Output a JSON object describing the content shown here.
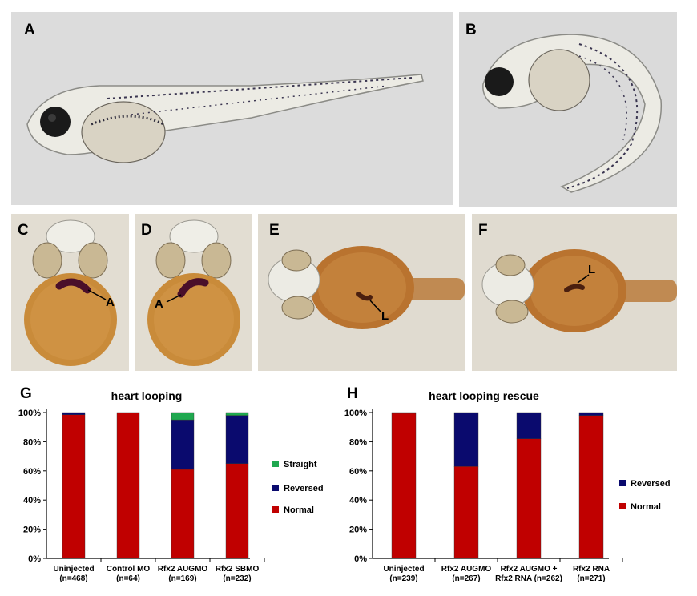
{
  "panels": {
    "A": {
      "label": "A"
    },
    "B": {
      "label": "B"
    },
    "C": {
      "label": "C",
      "annotation": "A"
    },
    "D": {
      "label": "D",
      "annotation": "A"
    },
    "E": {
      "label": "E",
      "annotation": "L"
    },
    "F": {
      "label": "F",
      "annotation": "L"
    },
    "G": {
      "label": "G"
    },
    "H": {
      "label": "H"
    }
  },
  "colors": {
    "Normal": "#c00000",
    "Reversed": "#0a0a6e",
    "Straight": "#1fa84f"
  },
  "chart_data": [
    {
      "type": "bar",
      "stacked": true,
      "panel": "G",
      "title": "heart looping",
      "categories": [
        [
          "Uninjected",
          "(n=468)"
        ],
        [
          "Control MO",
          "(n=64)"
        ],
        [
          "Rfx2 AUGMO",
          "(n=169)"
        ],
        [
          "Rfx2 SBMO",
          "(n=232)"
        ]
      ],
      "series": [
        {
          "name": "Normal",
          "values": [
            98.5,
            100,
            61,
            65
          ]
        },
        {
          "name": "Reversed",
          "values": [
            1.5,
            0,
            34,
            33
          ]
        },
        {
          "name": "Straight",
          "values": [
            0,
            0,
            5,
            2
          ]
        }
      ],
      "ylim": [
        0,
        100
      ],
      "yticks": [
        "0%",
        "20%",
        "40%",
        "60%",
        "80%",
        "100%"
      ],
      "legend": [
        "Straight",
        "Reversed",
        "Normal"
      ],
      "legend_position": "right"
    },
    {
      "type": "bar",
      "stacked": true,
      "panel": "H",
      "title": "heart looping rescue",
      "categories": [
        [
          "Uninjected",
          "(n=239)"
        ],
        [
          "Rfx2 AUGMO",
          "(n=267)"
        ],
        [
          "Rfx2 AUGMO +",
          "Rfx2 RNA (n=262)"
        ],
        [
          "Rfx2 RNA",
          "(n=271)"
        ]
      ],
      "series": [
        {
          "name": "Normal",
          "values": [
            99.5,
            63,
            82,
            98
          ]
        },
        {
          "name": "Reversed",
          "values": [
            0.5,
            37,
            18,
            2
          ]
        }
      ],
      "ylim": [
        0,
        100
      ],
      "yticks": [
        "0%",
        "20%",
        "40%",
        "60%",
        "80%",
        "100%"
      ],
      "legend": [
        "Reversed",
        "Normal"
      ],
      "legend_position": "right"
    }
  ]
}
